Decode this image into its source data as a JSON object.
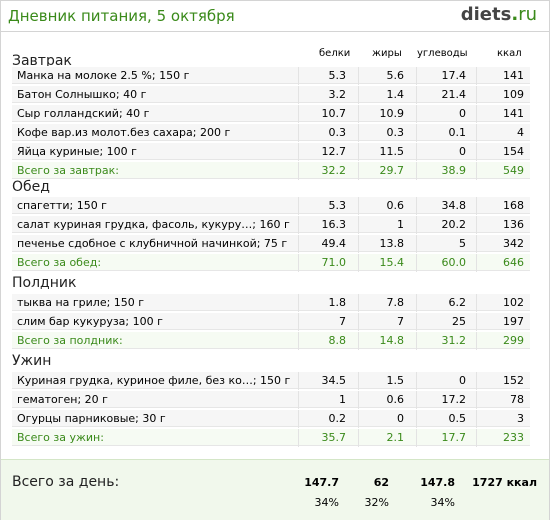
{
  "header": {
    "title": "Дневник питания, 5 октября",
    "logo_main": "diets",
    "logo_dot": ".",
    "logo_tld": "ru"
  },
  "columns": [
    "белки",
    "жиры",
    "углеводы",
    "ккал"
  ],
  "meals": [
    {
      "title": "Завтрак",
      "items": [
        [
          "Манка на молоке 2.5 %; 150 г",
          "5.3",
          "5.6",
          "17.4",
          "141"
        ],
        [
          "Батон Солнышко; 40 г",
          "3.2",
          "1.4",
          "21.4",
          "109"
        ],
        [
          "Сыр голландский; 40 г",
          "10.7",
          "10.9",
          "0",
          "141"
        ],
        [
          "Кофе вар.из молот.без сахара; 200 г",
          "0.3",
          "0.3",
          "0.1",
          "4"
        ],
        [
          "Яйца куриные; 100 г",
          "12.7",
          "11.5",
          "0",
          "154"
        ]
      ],
      "total": [
        "Всего за завтрак:",
        "32.2",
        "29.7",
        "38.9",
        "549"
      ]
    },
    {
      "title": "Обед",
      "items": [
        [
          "спагетти; 150 г",
          "5.3",
          "0.6",
          "34.8",
          "168"
        ],
        [
          "салат куриная грудка, фасоль, кукуру…; 160 г",
          "16.3",
          "1",
          "20.2",
          "136"
        ],
        [
          "печенье сдобное с клубничной начинкой; 75 г",
          "49.4",
          "13.8",
          "5",
          "342"
        ]
      ],
      "total": [
        "Всего за обед:",
        "71.0",
        "15.4",
        "60.0",
        "646"
      ]
    },
    {
      "title": "Полдник",
      "items": [
        [
          "тыква на гриле; 150 г",
          "1.8",
          "7.8",
          "6.2",
          "102"
        ],
        [
          "слим бар кукуруза; 100 г",
          "7",
          "7",
          "25",
          "197"
        ]
      ],
      "total": [
        "Всего за полдник:",
        "8.8",
        "14.8",
        "31.2",
        "299"
      ]
    },
    {
      "title": "Ужин",
      "items": [
        [
          "Куриная грудка, куриное филе, без ко…; 150 г",
          "34.5",
          "1.5",
          "0",
          "152"
        ],
        [
          "гематоген; 20 г",
          "1",
          "0.6",
          "17.2",
          "78"
        ],
        [
          "Огурцы парниковые; 30 г",
          "0.2",
          "0",
          "0.5",
          "3"
        ]
      ],
      "total": [
        "Всего за ужин:",
        "35.7",
        "2.1",
        "17.7",
        "233"
      ]
    }
  ],
  "day_total": {
    "label": "Всего за день:",
    "values": [
      "147.7",
      "62",
      "147.8",
      "1727 ккал"
    ],
    "percents": [
      "34%",
      "32%",
      "34%"
    ]
  },
  "colors": {
    "accent": "#3a8a1a",
    "row_bg": "#f6f6f6",
    "day_bg": "#f1f8ec"
  }
}
